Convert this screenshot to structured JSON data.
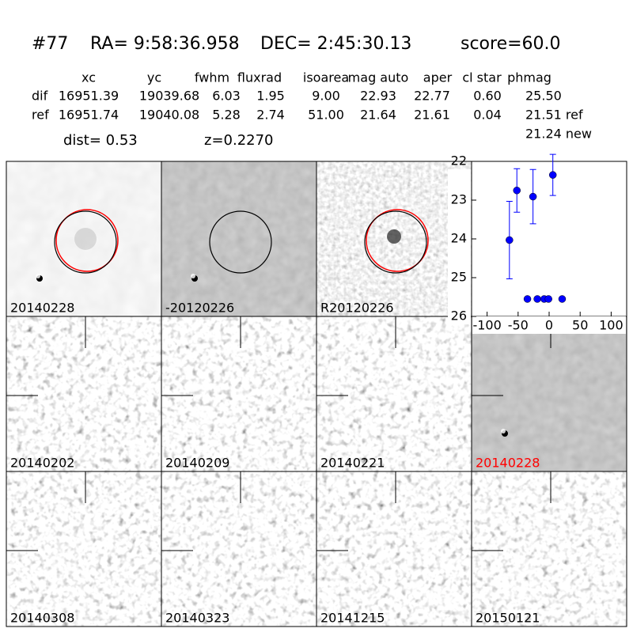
{
  "header": {
    "id": "#77",
    "ra": "RA= 9:58:36.958",
    "dec": "DEC= 2:45:30.13",
    "score": "score=60.0"
  },
  "table": {
    "columns": [
      "xc",
      "yc",
      "fwhm",
      "fluxrad",
      "isoarea",
      "mag auto",
      "aper",
      "cl star",
      "phmag"
    ],
    "rows": [
      [
        "dif",
        "16951.39",
        "19039.68",
        "6.03",
        "1.95",
        "9.00",
        "22.93",
        "22.77",
        "0.60",
        "25.50"
      ],
      [
        "ref",
        "16951.74",
        "19040.08",
        "5.28",
        "2.74",
        "51.00",
        "21.64",
        "21.61",
        "0.04",
        "21.51 ref"
      ]
    ],
    "extra": "21.24 new"
  },
  "dist": "dist=  0.53",
  "redshift": "z=0.2270",
  "panels": [
    {
      "label": "20140228"
    },
    {
      "label": "-20120226"
    },
    {
      "label": "R20120226"
    },
    {
      "label": "20140202"
    },
    {
      "label": "20140209"
    },
    {
      "label": "20140221"
    },
    {
      "label": "20140228",
      "highlight": "#ff0000"
    },
    {
      "label": "20140308"
    },
    {
      "label": "20140323"
    },
    {
      "label": "20141215"
    },
    {
      "label": "20150121"
    }
  ],
  "chart_data": {
    "type": "scatter",
    "invert_y": true,
    "xlim": [
      -125,
      125
    ],
    "xticks": [
      -100,
      -50,
      0,
      50,
      100
    ],
    "ylim": [
      22,
      26
    ],
    "yticks": [
      22,
      23,
      24,
      25,
      26
    ],
    "series": [
      {
        "color": "#0000ff",
        "x": [
          -64,
          -52,
          -26,
          6
        ],
        "values": [
          24.03,
          22.75,
          22.91,
          22.35
        ],
        "errors": [
          1.0,
          0.56,
          0.7,
          0.53
        ]
      },
      {
        "color": "#0000ff",
        "x": [
          -35,
          -19,
          -8,
          -1,
          21
        ],
        "values": [
          25.55,
          25.55,
          25.55,
          25.55,
          25.55
        ]
      }
    ]
  }
}
